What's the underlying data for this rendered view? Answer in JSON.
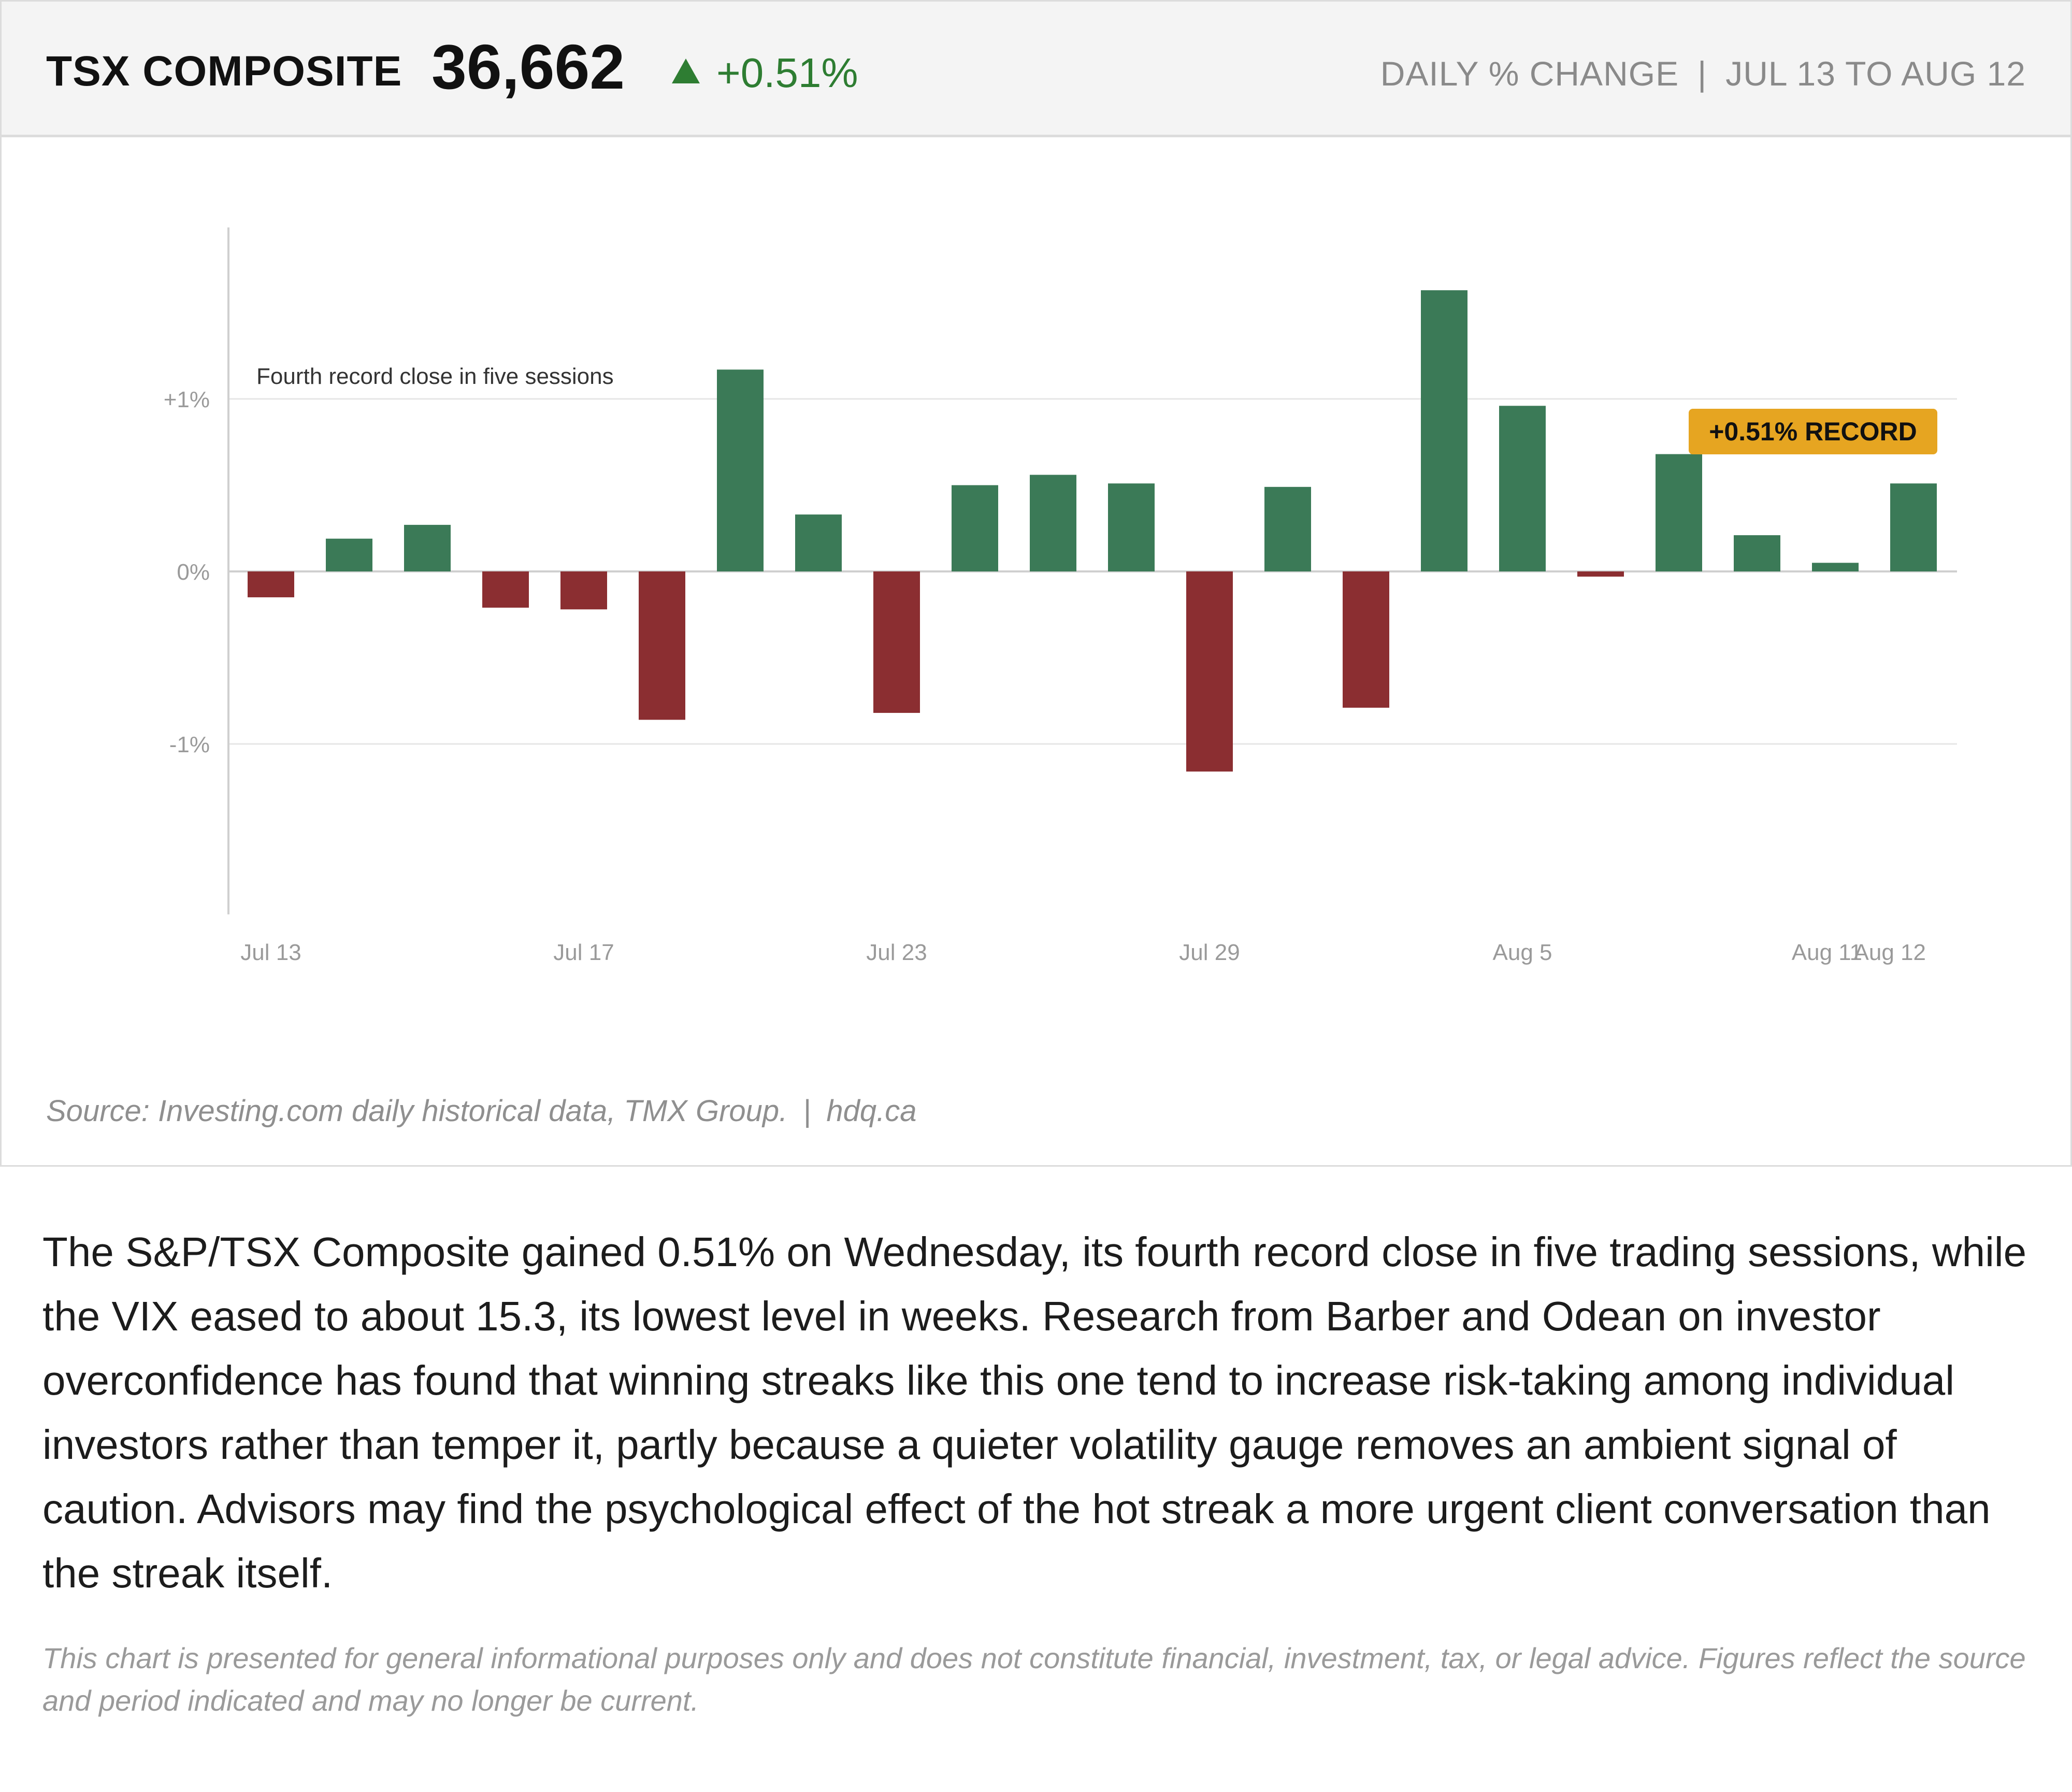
{
  "header": {
    "index_name": "TSX COMPOSITE",
    "index_value": "36,662",
    "arrow_icon": "triangle-up-icon",
    "change": "+0.51%",
    "metric_label": "DAILY % CHANGE",
    "separator": "|",
    "date_range": "JUL 13 TO AUG 12"
  },
  "colors": {
    "positive": "#3b7a57",
    "negative": "#8b2e31",
    "badge": "#e6a521",
    "change_text": "#2e7d32"
  },
  "chart_data": {
    "type": "bar",
    "title": "",
    "xlabel": "",
    "ylabel": "",
    "ylim": [
      -2,
      2
    ],
    "yticks": [
      1,
      0,
      -1
    ],
    "ytick_labels": [
      "+1%",
      "0%",
      "-1%"
    ],
    "grid": true,
    "categories": [
      "Jul 13",
      "Jul 14",
      "Jul 15",
      "Jul 16",
      "Jul 17",
      "Jul 18",
      "Jul 21",
      "Jul 22",
      "Jul 23",
      "Jul 24",
      "Jul 25",
      "Jul 28",
      "Jul 29",
      "Jul 30",
      "Jul 31",
      "Aug 1",
      "Aug 5",
      "Aug 6",
      "Aug 7",
      "Aug 8",
      "Aug 11",
      "Aug 12"
    ],
    "values": [
      -0.15,
      0.19,
      0.27,
      -0.21,
      -0.22,
      -0.86,
      1.17,
      0.33,
      -0.82,
      0.5,
      0.56,
      0.51,
      -1.16,
      0.49,
      -0.79,
      1.63,
      0.96,
      -0.03,
      0.68,
      0.21,
      0.05,
      0.51
    ],
    "x_tick_labels": [
      {
        "index": 0,
        "label": "Jul 13"
      },
      {
        "index": 4,
        "label": "Jul 17"
      },
      {
        "index": 8,
        "label": "Jul 23"
      },
      {
        "index": 12,
        "label": "Jul 29"
      },
      {
        "index": 16,
        "label": "Aug 5"
      },
      {
        "index": 20,
        "label": "Aug 11"
      },
      {
        "index": 21,
        "label": "Aug 12"
      }
    ],
    "annotation": "Fourth record close in five sessions",
    "badge": {
      "index": 21,
      "label": "+0.51% RECORD"
    }
  },
  "source": {
    "text": "Source: Investing.com daily historical data, TMX Group.",
    "separator": "|",
    "site": "hdq.ca"
  },
  "body_text": "The S&P/TSX Composite gained 0.51% on Wednesday, its fourth record close in five trading sessions, while the VIX eased to about 15.3, its lowest level in weeks. Research from Barber and Odean on investor overconfidence has found that winning streaks like this one tend to increase risk-taking among individual investors rather than temper it, partly because a quieter volatility gauge removes an ambient signal of caution. Advisors may find the psychological effect of the hot streak a more urgent client conversation than the streak itself.",
  "disclaimer": "This chart is presented for general informational purposes only and does not constitute financial, investment, tax, or legal advice. Figures reflect the source and period indicated and may no longer be current."
}
